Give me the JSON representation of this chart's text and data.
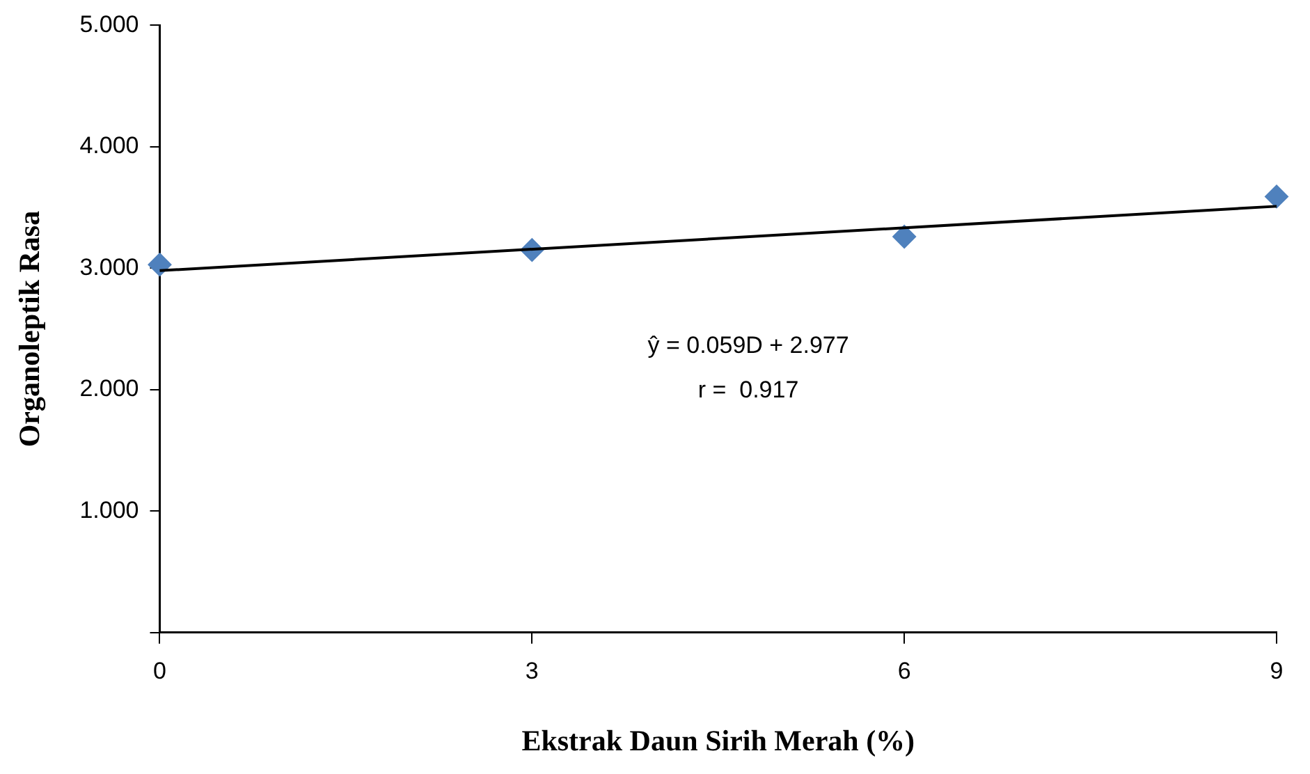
{
  "chart_data": {
    "type": "scatter",
    "xlabel": "Ekstrak Daun Sirih Merah (%)",
    "ylabel": "Organoleptik Rasa",
    "marker": "diamond",
    "grid": false,
    "legend": false,
    "xlim": [
      0,
      9
    ],
    "xticks": [
      0,
      3,
      6,
      9
    ],
    "ylim": [
      0,
      5
    ],
    "yticks": [
      {
        "value": 0,
        "label": null
      },
      {
        "value": 1,
        "label": "1.000"
      },
      {
        "value": 2,
        "label": "2.000"
      },
      {
        "value": 3,
        "label": "3.000"
      },
      {
        "value": 4,
        "label": "4.000"
      },
      {
        "value": 5,
        "label": "5.000"
      }
    ],
    "series": [
      {
        "color": "#4f81bd",
        "x": [
          0,
          3,
          6,
          9
        ],
        "values": [
          3.03,
          3.15,
          3.26,
          3.59
        ]
      },
      {
        "type": "line",
        "color": "#000000",
        "marker": "none",
        "line_style": "solid",
        "x": [
          0,
          9
        ],
        "values": [
          2.98,
          3.51
        ]
      }
    ],
    "annotations": [
      "ŷ = 0.059D + 2.977",
      "r =  0.917"
    ]
  }
}
